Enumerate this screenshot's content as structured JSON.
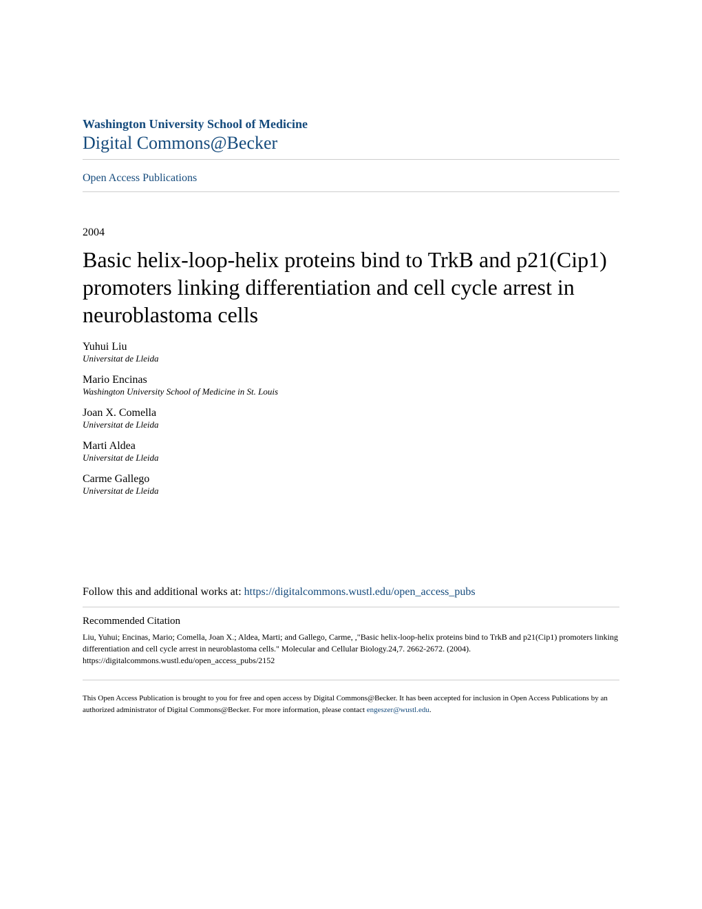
{
  "header": {
    "institution": "Washington University School of Medicine",
    "repository": "Digital Commons@Becker"
  },
  "nav": {
    "open_access": "Open Access Publications"
  },
  "article": {
    "year": "2004",
    "title": "Basic helix-loop-helix proteins bind to TrkB and p21(Cip1) promoters linking differentiation and cell cycle arrest in neuroblastoma cells"
  },
  "authors": [
    {
      "name": "Yuhui Liu",
      "affiliation": "Universitat de Lleida"
    },
    {
      "name": "Mario Encinas",
      "affiliation": "Washington University School of Medicine in St. Louis"
    },
    {
      "name": "Joan X. Comella",
      "affiliation": "Universitat de Lleida"
    },
    {
      "name": "Marti Aldea",
      "affiliation": "Universitat de Lleida"
    },
    {
      "name": "Carme Gallego",
      "affiliation": "Universitat de Lleida"
    }
  ],
  "follow": {
    "prefix": "Follow this and additional works at: ",
    "url": "https://digitalcommons.wustl.edu/open_access_pubs"
  },
  "citation": {
    "heading": "Recommended Citation",
    "text": "Liu, Yuhui; Encinas, Mario; Comella, Joan X.; Aldea, Marti; and Gallego, Carme, ,\"Basic helix-loop-helix proteins bind to TrkB and p21(Cip1) promoters linking differentiation and cell cycle arrest in neuroblastoma cells.\" Molecular and Cellular Biology.24,7. 2662-2672. (2004).",
    "url": "https://digitalcommons.wustl.edu/open_access_pubs/2152"
  },
  "footer": {
    "text": "This Open Access Publication is brought to you for free and open access by Digital Commons@Becker. It has been accepted for inclusion in Open Access Publications by an authorized administrator of Digital Commons@Becker. For more information, please contact ",
    "contact": "engeszer@wustl.edu",
    "suffix": "."
  },
  "colors": {
    "link": "#144a7c",
    "text": "#000000",
    "border": "#cccccc",
    "background": "#ffffff"
  }
}
